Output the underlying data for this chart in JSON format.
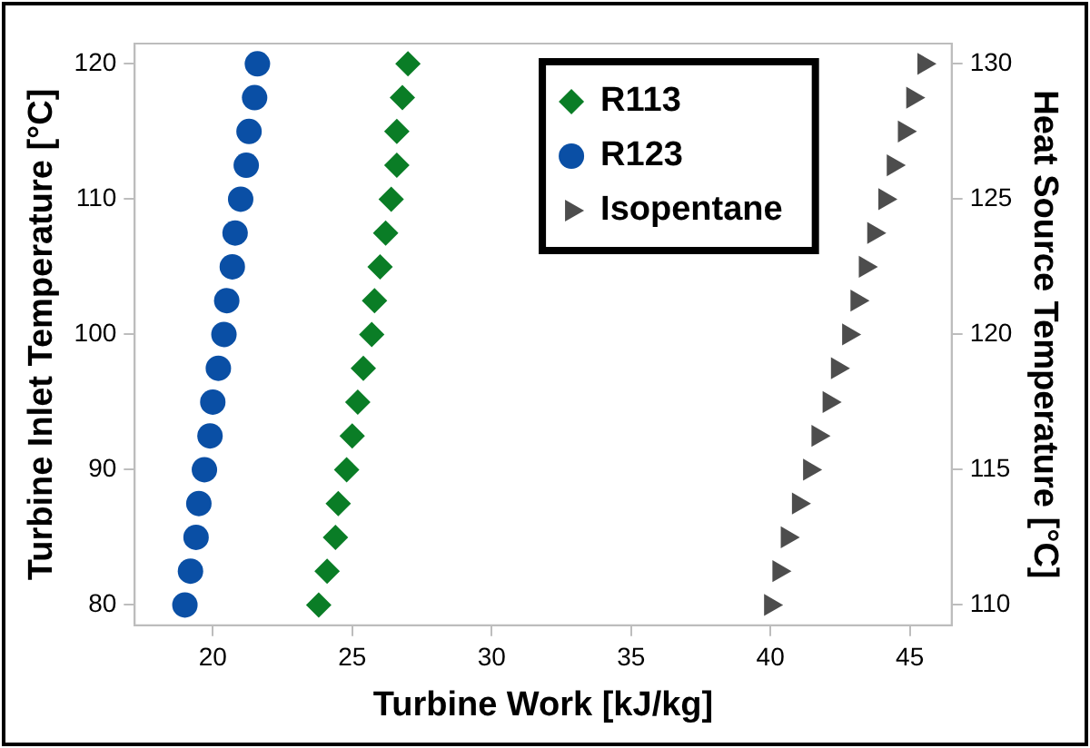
{
  "chart_data": {
    "type": "scatter",
    "xlabel": "Turbine Work [kJ/kg]",
    "ylabel": "Turbine Inlet Temperature [°C]",
    "y2label": "Heat Source Temperature [°C]",
    "xlim": [
      17.2,
      46.5
    ],
    "xticks": [
      20,
      25,
      30,
      35,
      40,
      45
    ],
    "ylim": [
      78.5,
      121.5
    ],
    "yticks": [
      80,
      90,
      100,
      110,
      120
    ],
    "y2lim": [
      109.25,
      130.75
    ],
    "y2ticks": [
      110,
      115,
      120,
      125,
      130
    ],
    "grid": false,
    "legend": "top right",
    "series": [
      {
        "name": "R113",
        "color": "#0a7d26",
        "marker": "diamond",
        "x": [
          23.8,
          24.1,
          24.4,
          24.5,
          24.8,
          25.0,
          25.2,
          25.4,
          25.7,
          25.8,
          26.0,
          26.2,
          26.4,
          26.6,
          26.6,
          26.8,
          27.0
        ],
        "values": [
          80,
          82.5,
          85,
          87.5,
          90,
          92.5,
          95,
          97.5,
          100,
          102.5,
          105,
          107.5,
          110,
          112.5,
          115,
          117.5,
          120
        ]
      },
      {
        "name": "R123",
        "color": "#0a4fa5",
        "marker": "circle",
        "x": [
          19.0,
          19.2,
          19.4,
          19.5,
          19.7,
          19.9,
          20.0,
          20.2,
          20.4,
          20.5,
          20.7,
          20.8,
          21.0,
          21.2,
          21.3,
          21.5,
          21.6
        ],
        "values": [
          80,
          82.5,
          85,
          87.5,
          90,
          92.5,
          95,
          97.5,
          100,
          102.5,
          105,
          107.5,
          110,
          112.5,
          115,
          117.5,
          120
        ]
      },
      {
        "name": "Isopentane",
        "color": "#4d4d4d",
        "marker": "triangle",
        "axis": "y2",
        "x": [
          40.0,
          40.3,
          40.6,
          41.0,
          41.4,
          41.7,
          42.1,
          42.4,
          42.8,
          43.1,
          43.4,
          43.7,
          44.1,
          44.4,
          44.8,
          45.1,
          45.5
        ],
        "values": [
          110,
          111.25,
          112.5,
          113.75,
          115,
          116.25,
          117.5,
          118.75,
          120,
          121.25,
          122.5,
          123.75,
          125,
          126.25,
          127.5,
          128.75,
          130
        ]
      }
    ]
  }
}
